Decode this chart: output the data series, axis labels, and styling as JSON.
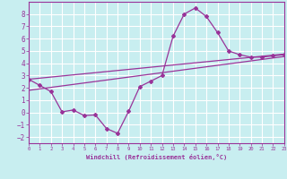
{
  "xlabel": "Windchill (Refroidissement éolien,°C)",
  "xlim": [
    0,
    23
  ],
  "ylim": [
    -2.5,
    9.0
  ],
  "yticks": [
    -2,
    -1,
    0,
    1,
    2,
    3,
    4,
    5,
    6,
    7,
    8
  ],
  "xticks": [
    0,
    1,
    2,
    3,
    4,
    5,
    6,
    7,
    8,
    9,
    10,
    11,
    12,
    13,
    14,
    15,
    16,
    17,
    18,
    19,
    20,
    21,
    22,
    23
  ],
  "bg_color": "#c8eef0",
  "grid_color": "#ffffff",
  "line_color": "#993399",
  "line1_x": [
    0,
    1,
    2,
    3,
    4,
    5,
    6,
    7,
    8,
    9,
    10,
    11,
    12,
    13,
    14,
    15,
    16,
    17,
    18,
    19,
    20,
    21,
    22,
    23
  ],
  "line1_y": [
    2.7,
    2.2,
    1.7,
    0.05,
    0.2,
    -0.25,
    -0.2,
    -1.3,
    -1.7,
    0.1,
    2.1,
    2.55,
    3.0,
    6.2,
    8.0,
    8.5,
    7.8,
    6.5,
    5.0,
    4.7,
    4.5,
    4.5,
    4.6,
    4.7
  ],
  "line2_x": [
    0,
    23
  ],
  "line2_y": [
    2.7,
    4.75
  ],
  "line3_x": [
    0,
    23
  ],
  "line3_y": [
    1.8,
    4.55
  ]
}
